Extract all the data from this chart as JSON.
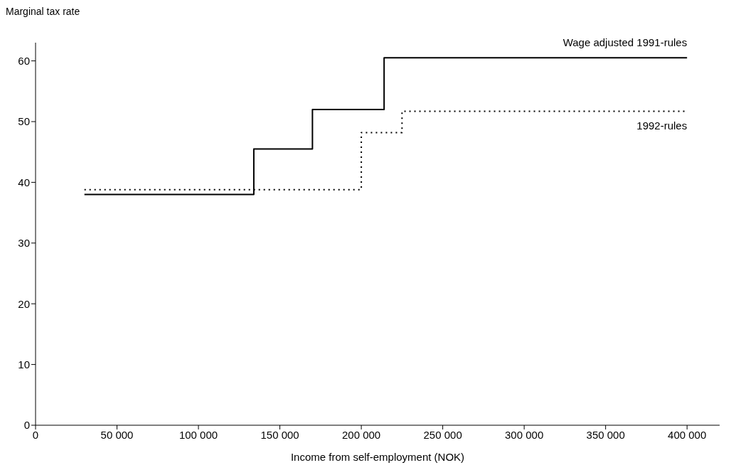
{
  "chart_data": {
    "type": "step",
    "xlabel": "Income from self-employment (NOK)",
    "ylabel": "Marginal tax rate",
    "xlim": [
      0,
      420000
    ],
    "xticks": [
      {
        "value": 0,
        "label": "0"
      },
      {
        "value": 50000,
        "label": "50 000"
      },
      {
        "value": 100000,
        "label": "100 000"
      },
      {
        "value": 150000,
        "label": "150 000"
      },
      {
        "value": 200000,
        "label": "200 000"
      },
      {
        "value": 250000,
        "label": "250 000"
      },
      {
        "value": 300000,
        "label": "300 000"
      },
      {
        "value": 350000,
        "label": "350 000"
      },
      {
        "value": 400000,
        "label": "400 000"
      }
    ],
    "ylim": [
      0,
      63
    ],
    "yticks": [
      0,
      10,
      20,
      30,
      40,
      50,
      60
    ],
    "grid": false,
    "legend": false,
    "series": [
      {
        "name": "Wage adjusted 1991-rules",
        "color": "#000000",
        "line_style": "solid",
        "x": [
          30000,
          134000,
          170000,
          214000,
          400000
        ],
        "values": [
          38,
          45.5,
          52,
          60.5,
          60.5
        ]
      },
      {
        "name": "1992-rules",
        "color": "#000000",
        "line_style": "dotted",
        "x": [
          30000,
          200000,
          225000,
          400000
        ],
        "values": [
          38.8,
          48.2,
          51.7,
          51.7
        ]
      }
    ]
  }
}
